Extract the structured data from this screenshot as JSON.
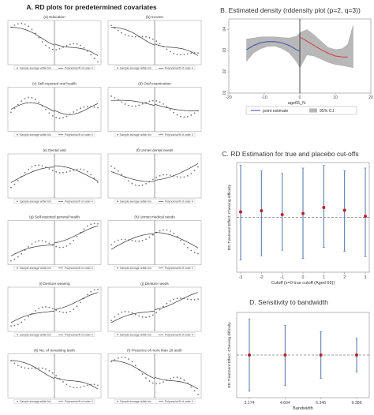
{
  "panel_a": {
    "title": "A. RD plots for predetermined covariates",
    "legend_left": "Sample average within bin",
    "legend_right": "Polynomial fit of order 4",
    "subplots": [
      {
        "title": "(a) Education",
        "trend": "down"
      },
      {
        "title": "(b) Income",
        "trend": "down"
      },
      {
        "title": "(c) Self-reported oral health",
        "trend": "wave"
      },
      {
        "title": "(d) Oral examination",
        "trend": "flatdown"
      },
      {
        "title": "(e) Dental visit",
        "trend": "hump"
      },
      {
        "title": "(f) Unmet dental needs",
        "trend": "dip"
      },
      {
        "title": "(g) Self-reported general health",
        "trend": "up"
      },
      {
        "title": "(h) Unmet medical needs",
        "trend": "hump"
      },
      {
        "title": "(i) Denture wearing",
        "trend": "up"
      },
      {
        "title": "(j) Denture needs",
        "trend": "up"
      },
      {
        "title": "(k) No. of remaining teeth",
        "trend": "down"
      },
      {
        "title": "(l) Presence of more than 20 teeth",
        "trend": "down"
      }
    ]
  },
  "chart_data": [
    {
      "type": "line",
      "title": "B. Estimated density (rddensity plot (p=2, q=3))",
      "xlabel": "age65_N",
      "ylabel": "",
      "xlim": [
        -20,
        20
      ],
      "ylim": [
        0.01,
        0.045
      ],
      "xticks": [
        "-20",
        "-10",
        "0",
        "10",
        "20"
      ],
      "yticks": [
        ".01",
        ".02",
        ".03",
        ".04"
      ],
      "cutoff": 0,
      "series": [
        {
          "name": "point estimate",
          "color": "#3b4bb8",
          "x": [
            -15,
            -13,
            -11,
            -9,
            -7,
            -5,
            -3,
            -1,
            0
          ],
          "y": [
            0.0305,
            0.0325,
            0.0338,
            0.0343,
            0.0343,
            0.0337,
            0.0325,
            0.0305,
            0.0298
          ]
        },
        {
          "name": "point estimate",
          "color": "#d04040",
          "x": [
            0,
            2,
            4,
            6,
            8,
            10,
            12,
            13.5
          ],
          "y": [
            0.0365,
            0.0345,
            0.0325,
            0.0305,
            0.0288,
            0.0275,
            0.027,
            0.027
          ]
        }
      ],
      "ci_band": {
        "name": "95% C.I.",
        "x": [
          -15,
          -13,
          -11,
          -9,
          -7,
          -5,
          -3,
          -1,
          0,
          2,
          4,
          6,
          8,
          10,
          12,
          13.5,
          15
        ],
        "lower": [
          0.025,
          0.029,
          0.031,
          0.032,
          0.0322,
          0.031,
          0.029,
          0.025,
          0.022,
          0.028,
          0.0275,
          0.026,
          0.0245,
          0.0235,
          0.023,
          0.0225,
          0.022
        ],
        "upper": [
          0.0355,
          0.036,
          0.0365,
          0.0366,
          0.0365,
          0.0362,
          0.036,
          0.0368,
          0.0385,
          0.04,
          0.0375,
          0.0345,
          0.0315,
          0.0305,
          0.031,
          0.033,
          0.042
        ]
      },
      "legend": [
        "point estimate",
        "95% C.I."
      ],
      "legend_placement": "bottom"
    },
    {
      "type": "scatter",
      "title": "C. RD Estimation for true and placebo cut-offs",
      "xlabel": "Cutoff (x=0 true cutoff (Aged 65))",
      "ylabel": "RD Treatment Effect: Chewing difficulty",
      "x": [
        -3,
        -2,
        -1,
        0,
        1,
        2,
        3
      ],
      "xticks": [
        "-3",
        "-2",
        "-1",
        "0",
        "1",
        "2",
        "3"
      ],
      "ylim": [
        -1,
        1
      ],
      "estimate": [
        0.1,
        0.12,
        0.05,
        0.07,
        0.18,
        0.13,
        0.02
      ],
      "ci_lower": [
        -0.78,
        -0.7,
        -0.6,
        -0.75,
        -0.55,
        -0.62,
        -0.72
      ],
      "ci_upper": [
        0.95,
        0.85,
        0.8,
        0.9,
        0.95,
        0.85,
        0.9
      ],
      "zero_line": true
    },
    {
      "type": "scatter",
      "title": "D. Sensitivity to bandwidth",
      "xlabel": "Bandwidth",
      "ylabel": "RD Treatment Effect: Chewing difficulty",
      "x": [
        3.174,
        4.604,
        6.346,
        9.386
      ],
      "xticks": [
        "3.174",
        "4.604",
        "6.346",
        "9.386"
      ],
      "ylim": [
        -1,
        1
      ],
      "estimate": [
        0.0,
        0.0,
        0.0,
        0.0
      ],
      "ci_lower": [
        -0.85,
        -0.72,
        -0.55,
        -0.4
      ],
      "ci_upper": [
        0.85,
        0.7,
        0.55,
        0.4
      ],
      "zero_line": true
    }
  ]
}
